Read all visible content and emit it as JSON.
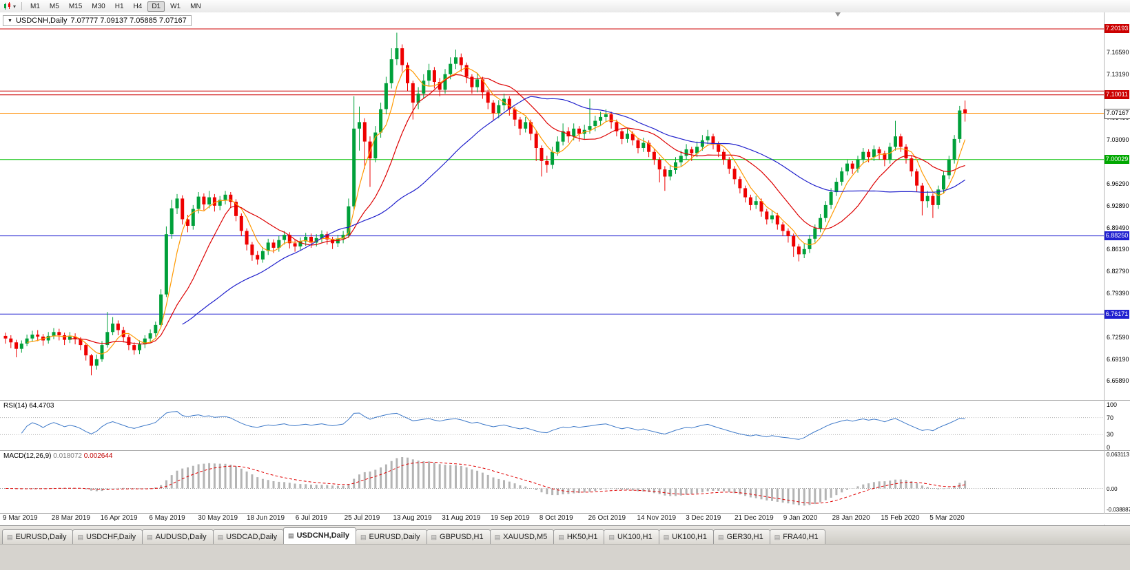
{
  "toolbar": {
    "timeframes": [
      "M1",
      "M5",
      "M15",
      "M30",
      "H1",
      "H4",
      "D1",
      "W1",
      "MN"
    ],
    "active_timeframe": "D1",
    "dropdown_arrow": "▾"
  },
  "chart": {
    "title": "USDCNH,Daily",
    "ohlc_line": "7.07777 7.09137 7.05885 7.07167",
    "collapse_arrow": "▼"
  },
  "rsi": {
    "label": "RSI(14)",
    "value": "64.4703",
    "axis": [
      "100",
      "70",
      "30",
      "0"
    ],
    "levels": [
      70,
      30
    ],
    "line_color": "#3c78c8"
  },
  "macd": {
    "label": "MACD(12,26,9)",
    "value_main": "0.018072",
    "value_signal": "0.002644",
    "axis_top": "0.063113",
    "axis_zero": "0.00",
    "axis_bottom": "-0.038887",
    "histogram_color": "#b4b4b4",
    "signal_color": "#e00000"
  },
  "time_axis": [
    "9 Mar 2019",
    "28 Mar 2019",
    "16 Apr 2019",
    "6 May 2019",
    "30 May 2019",
    "18 Jun 2019",
    "6 Jul 2019",
    "25 Jul 2019",
    "13 Aug 2019",
    "31 Aug 2019",
    "19 Sep 2019",
    "8 Oct 2019",
    "26 Oct 2019",
    "14 Nov 2019",
    "3 Dec 2019",
    "21 Dec 2019",
    "9 Jan 2020",
    "28 Jan 2020",
    "15 Feb 2020",
    "5 Mar 2020"
  ],
  "tabs": [
    {
      "label": "EURUSD,Daily",
      "active": false
    },
    {
      "label": "USDCHF,Daily",
      "active": false
    },
    {
      "label": "AUDUSD,Daily",
      "active": false
    },
    {
      "label": "USDCAD,Daily",
      "active": false
    },
    {
      "label": "USDCNH,Daily",
      "active": true
    },
    {
      "label": "EURUSD,Daily",
      "active": false
    },
    {
      "label": "GBPUSD,H1",
      "active": false
    },
    {
      "label": "XAUUSD,M5",
      "active": false
    },
    {
      "label": "HK50,H1",
      "active": false
    },
    {
      "label": "UK100,H1",
      "active": false
    },
    {
      "label": "UK100,H1",
      "active": false
    },
    {
      "label": "GER30,H1",
      "active": false
    },
    {
      "label": "FRA40,H1",
      "active": false
    }
  ],
  "chart_data": {
    "type": "candlestick",
    "symbol": "USDCNH",
    "period": "Daily",
    "current_bar": {
      "open": 7.07777,
      "high": 7.09137,
      "low": 7.05885,
      "close": 7.07167
    },
    "price_range": {
      "top": 7.2274,
      "bottom": 6.6291
    },
    "up_color": "#00a03a",
    "down_color": "#ee0000",
    "ma": [
      {
        "period": 5,
        "color": "#ff9900",
        "name": "fast-ma"
      },
      {
        "period": 13,
        "color": "#dd0000",
        "name": "medium-ma"
      },
      {
        "period": 34,
        "color": "#2020cc",
        "name": "slow-ma"
      }
    ],
    "hlines": [
      {
        "price": 7.20193,
        "color": "#cc0000",
        "badge": "7.20193",
        "badge_bg": "#cc0000"
      },
      {
        "price": 7.106,
        "color": "#cc0000"
      },
      {
        "price": 7.10011,
        "color": "#cc0000",
        "badge": "7.10011",
        "badge_bg": "#cc0000"
      },
      {
        "price": 7.07167,
        "color": "#ff8c00",
        "badge": "7.07167",
        "badge_bg": "#ffffff",
        "badge_fg": "#000000",
        "badge_border": "#555555"
      },
      {
        "price": 7.00029,
        "color": "#00c000",
        "badge": "7.00029",
        "badge_bg": "#00a800"
      },
      {
        "price": 6.8825,
        "color": "#2020d0",
        "badge": "6.88250",
        "badge_bg": "#2020d0"
      },
      {
        "price": 6.76171,
        "color": "#2020d0",
        "badge": "6.76171",
        "badge_bg": "#2020d0"
      }
    ],
    "y_ticks": [
      "7.16590",
      "7.13190",
      "7.06490",
      "7.03090",
      "6.96290",
      "6.92890",
      "6.89490",
      "6.86190",
      "6.82790",
      "6.79390",
      "6.72590",
      "6.69190",
      "6.65890"
    ],
    "rsi_period": 14,
    "macd_params": [
      12,
      26,
      9
    ],
    "ohlc": [
      [
        6.728,
        6.733,
        6.716,
        6.724
      ],
      [
        6.724,
        6.729,
        6.709,
        6.718
      ],
      [
        6.718,
        6.722,
        6.695,
        6.708
      ],
      [
        6.708,
        6.721,
        6.702,
        6.716
      ],
      [
        6.716,
        6.73,
        6.712,
        6.724
      ],
      [
        6.724,
        6.736,
        6.719,
        6.73
      ],
      [
        6.73,
        6.737,
        6.72,
        6.727
      ],
      [
        6.727,
        6.731,
        6.713,
        6.721
      ],
      [
        6.721,
        6.734,
        6.716,
        6.728
      ],
      [
        6.728,
        6.74,
        6.723,
        6.734
      ],
      [
        6.734,
        6.739,
        6.721,
        6.729
      ],
      [
        6.729,
        6.733,
        6.714,
        6.722
      ],
      [
        6.722,
        6.734,
        6.717,
        6.727
      ],
      [
        6.727,
        6.732,
        6.715,
        6.723
      ],
      [
        6.723,
        6.726,
        6.706,
        6.714
      ],
      [
        6.714,
        6.717,
        6.69,
        6.698
      ],
      [
        6.698,
        6.7,
        6.667,
        6.682
      ],
      [
        6.682,
        6.699,
        6.676,
        6.692
      ],
      [
        6.692,
        6.72,
        6.688,
        6.714
      ],
      [
        6.714,
        6.765,
        6.71,
        6.734
      ],
      [
        6.734,
        6.757,
        6.729,
        6.747
      ],
      [
        6.747,
        6.752,
        6.729,
        6.737
      ],
      [
        6.737,
        6.742,
        6.718,
        6.726
      ],
      [
        6.726,
        6.73,
        6.706,
        6.714
      ],
      [
        6.714,
        6.718,
        6.699,
        6.706
      ],
      [
        6.706,
        6.721,
        6.7,
        6.715
      ],
      [
        6.715,
        6.729,
        6.709,
        6.724
      ],
      [
        6.724,
        6.738,
        6.718,
        6.732
      ],
      [
        6.732,
        6.75,
        6.727,
        6.745
      ],
      [
        6.745,
        6.8,
        6.741,
        6.792
      ],
      [
        6.792,
        6.897,
        6.788,
        6.885
      ],
      [
        6.885,
        6.938,
        6.878,
        6.925
      ],
      [
        6.925,
        6.947,
        6.916,
        6.94
      ],
      [
        6.94,
        6.945,
        6.9,
        6.908
      ],
      [
        6.908,
        6.915,
        6.888,
        6.898
      ],
      [
        6.898,
        6.93,
        6.892,
        6.924
      ],
      [
        6.924,
        6.95,
        6.917,
        6.943
      ],
      [
        6.943,
        6.948,
        6.922,
        6.931
      ],
      [
        6.931,
        6.952,
        6.925,
        6.942
      ],
      [
        6.942,
        6.947,
        6.92,
        6.929
      ],
      [
        6.929,
        6.944,
        6.922,
        6.938
      ],
      [
        6.938,
        6.952,
        6.931,
        6.946
      ],
      [
        6.946,
        6.95,
        6.926,
        6.935
      ],
      [
        6.935,
        6.939,
        6.905,
        6.913
      ],
      [
        6.913,
        6.917,
        6.882,
        6.89
      ],
      [
        6.89,
        6.894,
        6.86,
        6.869
      ],
      [
        6.869,
        6.873,
        6.844,
        6.853
      ],
      [
        6.853,
        6.859,
        6.838,
        6.846
      ],
      [
        6.846,
        6.865,
        6.841,
        6.859
      ],
      [
        6.859,
        6.878,
        6.853,
        6.872
      ],
      [
        6.872,
        6.877,
        6.856,
        6.864
      ],
      [
        6.864,
        6.882,
        6.858,
        6.876
      ],
      [
        6.876,
        6.89,
        6.869,
        6.884
      ],
      [
        6.884,
        6.888,
        6.863,
        6.871
      ],
      [
        6.871,
        6.877,
        6.858,
        6.866
      ],
      [
        6.866,
        6.88,
        6.86,
        6.874
      ],
      [
        6.874,
        6.887,
        6.867,
        6.881
      ],
      [
        6.881,
        6.886,
        6.864,
        6.872
      ],
      [
        6.872,
        6.885,
        6.866,
        6.879
      ],
      [
        6.879,
        6.891,
        6.872,
        6.885
      ],
      [
        6.885,
        6.889,
        6.869,
        6.877
      ],
      [
        6.877,
        6.881,
        6.862,
        6.871
      ],
      [
        6.871,
        6.884,
        6.865,
        6.878
      ],
      [
        6.878,
        6.89,
        6.871,
        6.884
      ],
      [
        6.884,
        6.94,
        6.879,
        6.928
      ],
      [
        6.928,
        7.098,
        6.923,
        7.048
      ],
      [
        7.048,
        7.082,
        7.014,
        7.058
      ],
      [
        7.058,
        7.064,
        6.986,
        7.028
      ],
      [
        7.028,
        7.036,
        6.958,
        7.002
      ],
      [
        7.002,
        7.052,
        6.996,
        7.042
      ],
      [
        7.042,
        7.088,
        7.034,
        7.078
      ],
      [
        7.078,
        7.128,
        7.07,
        7.118
      ],
      [
        7.118,
        7.172,
        7.11,
        7.155
      ],
      [
        7.155,
        7.196,
        7.146,
        7.172
      ],
      [
        7.172,
        7.178,
        7.136,
        7.146
      ],
      [
        7.146,
        7.15,
        7.106,
        7.118
      ],
      [
        7.118,
        7.122,
        7.062,
        7.088
      ],
      [
        7.088,
        7.112,
        7.078,
        7.102
      ],
      [
        7.102,
        7.132,
        7.094,
        7.122
      ],
      [
        7.122,
        7.148,
        7.114,
        7.138
      ],
      [
        7.138,
        7.143,
        7.11,
        7.12
      ],
      [
        7.12,
        7.126,
        7.098,
        7.108
      ],
      [
        7.108,
        7.14,
        7.102,
        7.132
      ],
      [
        7.132,
        7.158,
        7.124,
        7.148
      ],
      [
        7.148,
        7.17,
        7.14,
        7.158
      ],
      [
        7.158,
        7.164,
        7.136,
        7.146
      ],
      [
        7.146,
        7.15,
        7.118,
        7.128
      ],
      [
        7.128,
        7.132,
        7.102,
        7.112
      ],
      [
        7.112,
        7.134,
        7.104,
        7.124
      ],
      [
        7.124,
        7.128,
        7.094,
        7.104
      ],
      [
        7.104,
        7.108,
        7.078,
        7.088
      ],
      [
        7.088,
        7.092,
        7.06,
        7.072
      ],
      [
        7.072,
        7.092,
        7.064,
        7.084
      ],
      [
        7.084,
        7.102,
        7.076,
        7.094
      ],
      [
        7.094,
        7.098,
        7.068,
        7.078
      ],
      [
        7.078,
        7.082,
        7.052,
        7.062
      ],
      [
        7.062,
        7.066,
        7.038,
        7.048
      ],
      [
        7.048,
        7.066,
        7.042,
        7.058
      ],
      [
        7.058,
        7.062,
        7.03,
        7.04
      ],
      [
        7.04,
        7.044,
        6.998,
        7.018
      ],
      [
        7.018,
        7.022,
        6.974,
        6.998
      ],
      [
        6.998,
        7.006,
        6.98,
        6.992
      ],
      [
        6.992,
        7.02,
        6.986,
        7.012
      ],
      [
        7.012,
        7.036,
        7.006,
        7.028
      ],
      [
        7.028,
        7.056,
        7.022,
        7.044
      ],
      [
        7.044,
        7.05,
        7.026,
        7.036
      ],
      [
        7.036,
        7.056,
        7.03,
        7.048
      ],
      [
        7.048,
        7.052,
        7.028,
        7.04
      ],
      [
        7.04,
        7.054,
        7.032,
        7.046
      ],
      [
        7.046,
        7.094,
        7.04,
        7.052
      ],
      [
        7.052,
        7.068,
        7.044,
        7.06
      ],
      [
        7.06,
        7.074,
        7.052,
        7.066
      ],
      [
        7.066,
        7.078,
        7.058,
        7.07
      ],
      [
        7.07,
        7.074,
        7.048,
        7.058
      ],
      [
        7.058,
        7.062,
        7.036,
        7.044
      ],
      [
        7.044,
        7.048,
        7.024,
        7.032
      ],
      [
        7.032,
        7.048,
        7.026,
        7.04
      ],
      [
        7.04,
        7.044,
        7.022,
        7.03
      ],
      [
        7.03,
        7.034,
        7.01,
        7.018
      ],
      [
        7.018,
        7.034,
        7.012,
        7.026
      ],
      [
        7.026,
        7.03,
        7.004,
        7.012
      ],
      [
        7.012,
        7.016,
        6.992,
        7.0
      ],
      [
        7.0,
        7.004,
        6.965,
        6.985
      ],
      [
        6.985,
        6.99,
        6.952,
        6.974
      ],
      [
        6.974,
        6.992,
        6.968,
        6.984
      ],
      [
        6.984,
        7.004,
        6.978,
        6.996
      ],
      [
        6.996,
        7.014,
        6.99,
        7.006
      ],
      [
        7.006,
        7.024,
        7.0,
        7.016
      ],
      [
        7.016,
        7.02,
        6.998,
        7.01
      ],
      [
        7.01,
        7.028,
        7.004,
        7.02
      ],
      [
        7.02,
        7.038,
        7.014,
        7.03
      ],
      [
        7.03,
        7.046,
        7.024,
        7.036
      ],
      [
        7.036,
        7.04,
        7.016,
        7.024
      ],
      [
        7.024,
        7.028,
        7.004,
        7.012
      ],
      [
        7.012,
        7.016,
        6.992,
        7.0
      ],
      [
        7.0,
        7.004,
        6.978,
        6.986
      ],
      [
        6.986,
        6.99,
        6.962,
        6.97
      ],
      [
        6.97,
        6.974,
        6.948,
        6.956
      ],
      [
        6.956,
        6.96,
        6.934,
        6.942
      ],
      [
        6.942,
        6.946,
        6.922,
        6.93
      ],
      [
        6.93,
        6.944,
        6.924,
        6.936
      ],
      [
        6.936,
        6.94,
        6.912,
        6.92
      ],
      [
        6.92,
        6.924,
        6.9,
        6.908
      ],
      [
        6.908,
        6.922,
        6.902,
        6.914
      ],
      [
        6.914,
        6.918,
        6.892,
        6.9
      ],
      [
        6.9,
        6.904,
        6.882,
        6.89
      ],
      [
        6.89,
        6.894,
        6.872,
        6.882
      ],
      [
        6.882,
        6.886,
        6.85,
        6.866
      ],
      [
        6.866,
        6.87,
        6.843,
        6.854
      ],
      [
        6.854,
        6.87,
        6.848,
        6.862
      ],
      [
        6.862,
        6.884,
        6.856,
        6.878
      ],
      [
        6.878,
        6.9,
        6.872,
        6.894
      ],
      [
        6.894,
        6.916,
        6.888,
        6.91
      ],
      [
        6.91,
        6.936,
        6.904,
        6.93
      ],
      [
        6.93,
        6.956,
        6.924,
        6.95
      ],
      [
        6.95,
        6.972,
        6.944,
        6.966
      ],
      [
        6.966,
        6.988,
        6.96,
        6.982
      ],
      [
        6.982,
        7.0,
        6.976,
        6.994
      ],
      [
        6.994,
        6.998,
        6.978,
        6.986
      ],
      [
        6.986,
        7.006,
        6.98,
        7.0
      ],
      [
        7.0,
        7.018,
        6.994,
        7.012
      ],
      [
        7.012,
        7.016,
        6.996,
        7.004
      ],
      [
        7.004,
        7.022,
        6.998,
        7.016
      ],
      [
        7.016,
        7.02,
        7.0,
        7.01
      ],
      [
        7.01,
        7.014,
        6.99,
        7.0
      ],
      [
        7.0,
        7.026,
        6.994,
        7.02
      ],
      [
        7.02,
        7.06,
        7.014,
        7.036
      ],
      [
        7.036,
        7.04,
        7.012,
        7.02
      ],
      [
        7.02,
        7.024,
        6.994,
        7.002
      ],
      [
        7.002,
        7.006,
        6.974,
        6.982
      ],
      [
        6.982,
        6.986,
        6.95,
        6.96
      ],
      [
        6.96,
        6.964,
        6.914,
        6.936
      ],
      [
        6.936,
        6.952,
        6.926,
        6.944
      ],
      [
        6.944,
        6.948,
        6.91,
        6.93
      ],
      [
        6.93,
        6.96,
        6.924,
        6.954
      ],
      [
        6.954,
        6.982,
        6.948,
        6.976
      ],
      [
        6.976,
        7.006,
        6.97,
        7.0
      ],
      [
        7.0,
        7.038,
        6.994,
        7.032
      ],
      [
        7.032,
        7.083,
        7.026,
        7.076
      ],
      [
        7.07777,
        7.09137,
        7.05885,
        7.07167
      ]
    ]
  }
}
